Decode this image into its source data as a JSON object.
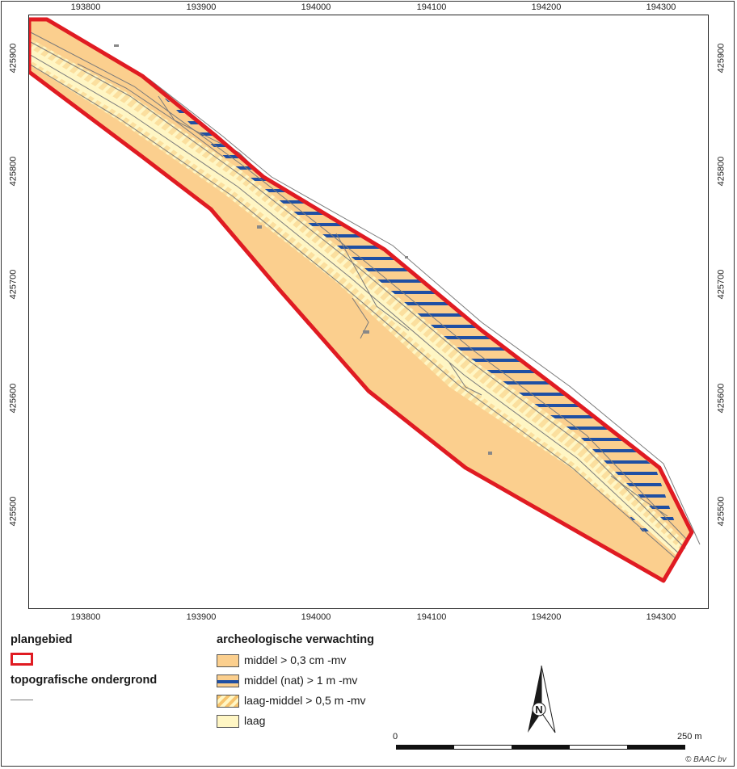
{
  "map": {
    "x_ticks": [
      "193800",
      "193900",
      "194000",
      "194100",
      "194200",
      "194300"
    ],
    "y_ticks": [
      "425900",
      "425800",
      "425700",
      "425600",
      "425500"
    ]
  },
  "legend": {
    "plangebied": {
      "title": "plangebied",
      "color": "#e01b22"
    },
    "topo": {
      "title": "topografische ondergrond",
      "color": "#7a7a7a"
    },
    "verwachting": {
      "title": "archeologische verwachting",
      "items": [
        {
          "label": "middel > 0,3 cm -mv",
          "color": "#fbcf8e"
        },
        {
          "label": "middel (nat) > 1 m -mv",
          "color": "#1f4fa3"
        },
        {
          "label": "laag-middel > 0,5 m -mv",
          "color": "#f6d58e"
        },
        {
          "label": "laag",
          "color": "#fff6c4"
        }
      ]
    }
  },
  "north_arrow": {
    "letter": "N"
  },
  "scale_bar": {
    "start_label": "0",
    "end_label": "250 m"
  },
  "credit": "© BAAC bv"
}
